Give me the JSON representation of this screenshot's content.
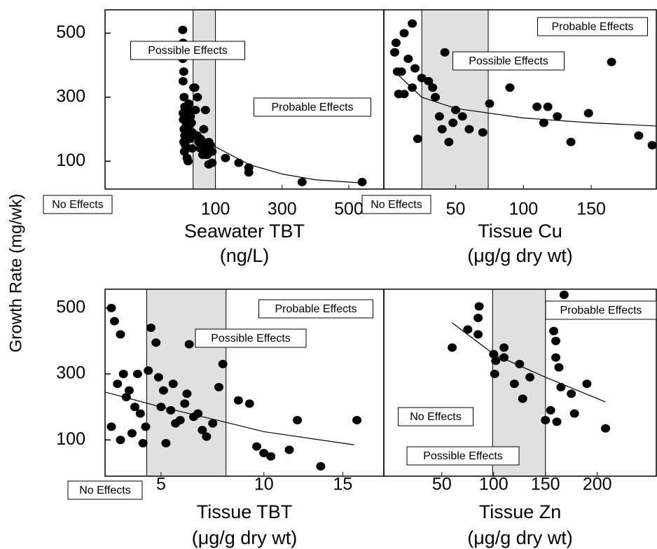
{
  "chart_data": [
    {
      "type": "scatter",
      "ylabel": "Growth Rate (mg/wk)",
      "xlabel": [
        "Seawater TBT",
        "(ng/L)"
      ],
      "xlim": [
        -231,
        605
      ],
      "ylim": [
        13,
        573
      ],
      "xticks": [
        100,
        300,
        500
      ],
      "yticks": [
        100,
        300,
        500
      ],
      "color": "#000000",
      "x": [
        2,
        3,
        4,
        2,
        5,
        3,
        6,
        8,
        10,
        12,
        5,
        7,
        15,
        18,
        20,
        22,
        25,
        28,
        30,
        35,
        40,
        45,
        50,
        55,
        60,
        65,
        70,
        75,
        80,
        85,
        90,
        3,
        4,
        6,
        8,
        10,
        14,
        18,
        24,
        30,
        38,
        46,
        55,
        62,
        70,
        80,
        90,
        130,
        170,
        200,
        200,
        360,
        540
      ],
      "values": [
        510,
        470,
        430,
        420,
        380,
        350,
        300,
        270,
        240,
        210,
        160,
        130,
        110,
        100,
        280,
        260,
        240,
        220,
        190,
        330,
        260,
        180,
        160,
        170,
        150,
        200,
        140,
        120,
        160,
        150,
        130,
        250,
        230,
        200,
        180,
        150,
        190,
        210,
        170,
        140,
        330,
        300,
        140,
        120,
        260,
        90,
        95,
        110,
        95,
        80,
        65,
        35,
        35
      ],
      "fit": {
        "x": [
          0,
          50,
          100,
          200,
          300,
          400,
          540
        ],
        "values": [
          240,
          185,
          145,
          90,
          60,
          42,
          32
        ]
      },
      "shaded": [
        33,
        100
      ],
      "annotations": [
        "Possible Effects",
        "Probable Effects",
        "No Effects"
      ]
    },
    {
      "type": "scatter",
      "xlabel": [
        "Tissue Cu",
        "(μg/g dry wt)"
      ],
      "xlim": [
        -3,
        198
      ],
      "ylim": [
        13,
        573
      ],
      "xticks": [
        50,
        100,
        150
      ],
      "color": "#000000",
      "x": [
        5,
        6,
        7,
        8,
        10,
        12,
        15,
        18,
        20,
        22,
        25,
        5,
        8,
        12,
        18,
        30,
        33,
        35,
        38,
        40,
        42,
        45,
        48,
        50,
        55,
        60,
        70,
        75,
        90,
        110,
        115,
        118,
        125,
        135,
        148,
        165,
        185,
        195
      ],
      "values": [
        440,
        470,
        380,
        310,
        380,
        500,
        420,
        530,
        390,
        170,
        360,
        440,
        310,
        310,
        330,
        350,
        330,
        300,
        240,
        200,
        440,
        160,
        220,
        260,
        240,
        200,
        190,
        280,
        330,
        270,
        220,
        270,
        240,
        160,
        250,
        410,
        180,
        150
      ],
      "fit": {
        "x": [
          5,
          25,
          50,
          100,
          150,
          198
        ],
        "values": [
          380,
          300,
          265,
          235,
          220,
          210
        ]
      },
      "shaded": [
        25,
        74
      ],
      "annotations": [
        "Probable Effects",
        "Possible Effects",
        "No Effects"
      ]
    },
    {
      "type": "scatter",
      "xscale": "sqrt",
      "xlabel": [
        "Tissue TBT",
        "(μg/g dry wt)"
      ],
      "xlim": [
        3,
        18
      ],
      "ylim": [
        -10,
        557
      ],
      "xticks": [
        5,
        10,
        15
      ],
      "yticks": [
        100,
        300,
        500
      ],
      "color": "#000000",
      "x": [
        3.2,
        3.3,
        3.5,
        3.6,
        3.8,
        3.4,
        3.7,
        4.0,
        4.2,
        4.4,
        3.2,
        3.5,
        3.9,
        4.3,
        4.6,
        4.8,
        4.9,
        5.0,
        5.2,
        5.4,
        5.6,
        5.8,
        6.0,
        6.2,
        6.4,
        6.6,
        6.8,
        7.0,
        7.3,
        7.6,
        5.1,
        5.5,
        6.1,
        8.6,
        9.2,
        9.6,
        10.0,
        10.4,
        11.5,
        12.0,
        13.5,
        16.0,
        4.1,
        4.5,
        7.8
      ],
      "values": [
        500,
        460,
        420,
        300,
        250,
        270,
        230,
        200,
        180,
        140,
        140,
        100,
        120,
        90,
        440,
        395,
        290,
        200,
        90,
        190,
        150,
        160,
        210,
        390,
        170,
        180,
        130,
        110,
        150,
        260,
        250,
        270,
        240,
        220,
        210,
        80,
        60,
        50,
        70,
        160,
        20,
        160,
        300,
        310,
        330
      ],
      "fit": {
        "x": [
          3,
          5,
          7.5,
          10,
          15.8
        ],
        "values": [
          245,
          200,
          160,
          125,
          85
        ]
      },
      "shaded": [
        4.44,
        7.96
      ],
      "annotations": [
        "Probable Effects",
        "Possible Effects",
        "No Effects"
      ]
    },
    {
      "type": "scatter",
      "xlabel": [
        "Tissue Zn",
        "(μg/g dry wt)"
      ],
      "xlim": [
        -6,
        257
      ],
      "ylim": [
        -10,
        557
      ],
      "xticks": [
        50,
        100,
        150,
        200
      ],
      "color": "#000000",
      "x": [
        60,
        75,
        85,
        85,
        86,
        100,
        101,
        102,
        110,
        110,
        120,
        125,
        128,
        135,
        150,
        155,
        158,
        160,
        160,
        161,
        163,
        165,
        168,
        175,
        178,
        190,
        208
      ],
      "values": [
        380,
        435,
        420,
        470,
        505,
        360,
        300,
        340,
        350,
        380,
        270,
        330,
        225,
        290,
        160,
        190,
        430,
        400,
        350,
        155,
        320,
        260,
        540,
        240,
        180,
        270,
        135
      ],
      "fit": {
        "x": [
          60,
          100,
          150,
          208
        ],
        "values": [
          455,
          360,
          290,
          215
        ]
      },
      "shaded": [
        99,
        150
      ],
      "annotations": [
        "Probable Effects",
        "No Effects",
        "Possible Effects"
      ]
    }
  ]
}
